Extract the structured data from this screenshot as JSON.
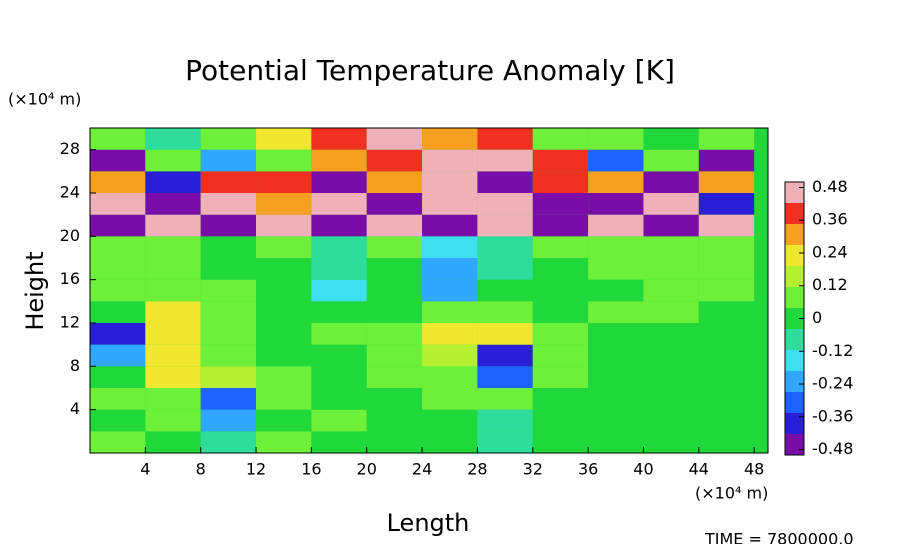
{
  "chart_data": {
    "type": "heatmap",
    "title": "Potential Temperature Anomaly [K]",
    "xlabel": "Length",
    "ylabel": "Height",
    "x_unit": "(×10⁴ m)",
    "y_unit": "(×10⁴ m)",
    "footer": "TIME = 7800000.0",
    "x": [
      2,
      6,
      10,
      14,
      18,
      22,
      26,
      30,
      34,
      38,
      42,
      46
    ],
    "y": [
      1,
      3,
      5,
      7,
      9,
      11,
      13,
      15,
      17,
      19,
      21,
      23,
      25,
      27,
      29
    ],
    "z": [
      [
        0.05,
        0,
        -0.1,
        0.05,
        0,
        0.02,
        0,
        -0.05,
        0,
        0.02,
        0,
        0.02
      ],
      [
        0,
        0.05,
        -0.25,
        0,
        0.05,
        0,
        0,
        -0.1,
        0,
        0,
        0.02,
        0
      ],
      [
        0.05,
        0.1,
        -0.3,
        0.05,
        0,
        0,
        0.05,
        0.1,
        0.02,
        0,
        0,
        0.02
      ],
      [
        0,
        0.2,
        0.15,
        0.05,
        0,
        0.05,
        0.1,
        -0.3,
        0.05,
        0,
        0.02,
        0
      ],
      [
        -0.2,
        0.25,
        0.05,
        0,
        0.02,
        0.05,
        0.15,
        -0.35,
        0.05,
        0,
        0,
        0.02
      ],
      [
        -0.4,
        0.2,
        0.05,
        0,
        0.05,
        0.05,
        0.2,
        0.25,
        0.05,
        0,
        0.02,
        0
      ],
      [
        0,
        0.25,
        0.05,
        0,
        0.02,
        0,
        0.05,
        0.1,
        0.02,
        0.05,
        0.05,
        0.02
      ],
      [
        0.05,
        0.05,
        0.08,
        0.02,
        -0.15,
        0.02,
        -0.25,
        0,
        0.02,
        0.02,
        0.05,
        0.05
      ],
      [
        0.05,
        0.05,
        0.02,
        0,
        -0.1,
        0,
        -0.2,
        -0.1,
        0.02,
        0.05,
        0.05,
        0.05
      ],
      [
        0.05,
        0.05,
        0.02,
        0.05,
        -0.1,
        0.1,
        -0.15,
        -0.05,
        0.05,
        0.05,
        0.05,
        0.05
      ],
      [
        -0.5,
        0.48,
        -0.5,
        0.48,
        -0.5,
        0.48,
        -0.45,
        0.48,
        -0.5,
        0.48,
        -0.5,
        0.48
      ],
      [
        0.48,
        -0.5,
        0.45,
        0.3,
        0.48,
        -0.5,
        0.48,
        0.48,
        -0.5,
        -0.5,
        0.48,
        -0.4
      ],
      [
        0.3,
        -0.4,
        0.4,
        0.36,
        -0.45,
        0.3,
        0.48,
        -0.45,
        0.4,
        0.3,
        -0.45,
        0.3
      ],
      [
        -0.48,
        0.1,
        -0.2,
        0.05,
        0.3,
        0.4,
        0.48,
        0.48,
        0.36,
        -0.3,
        0.1,
        -0.48
      ],
      [
        0.05,
        -0.1,
        0.1,
        0.2,
        0.36,
        0.48,
        0.3,
        0.36,
        0.1,
        0.05,
        0,
        0.05
      ]
    ],
    "xlim": [
      0,
      49
    ],
    "ylim": [
      0,
      30
    ],
    "xticks": [
      4,
      8,
      12,
      16,
      20,
      24,
      28,
      32,
      36,
      40,
      44,
      48
    ],
    "yticks": [
      4,
      8,
      12,
      16,
      20,
      24,
      28
    ],
    "clim": [
      -0.5,
      0.5
    ],
    "cticks": [
      0.48,
      0.36,
      0.24,
      0.12,
      0,
      -0.12,
      -0.24,
      -0.36,
      -0.48
    ],
    "colorscale": [
      "#7a0da8",
      "#2a1fd9",
      "#1e62ff",
      "#30a8ff",
      "#3ee0f0",
      "#2edc9c",
      "#20d83a",
      "#6ef03a",
      "#b4f030",
      "#f0e830",
      "#f5a020",
      "#f03020",
      "#f0b0b8"
    ]
  }
}
